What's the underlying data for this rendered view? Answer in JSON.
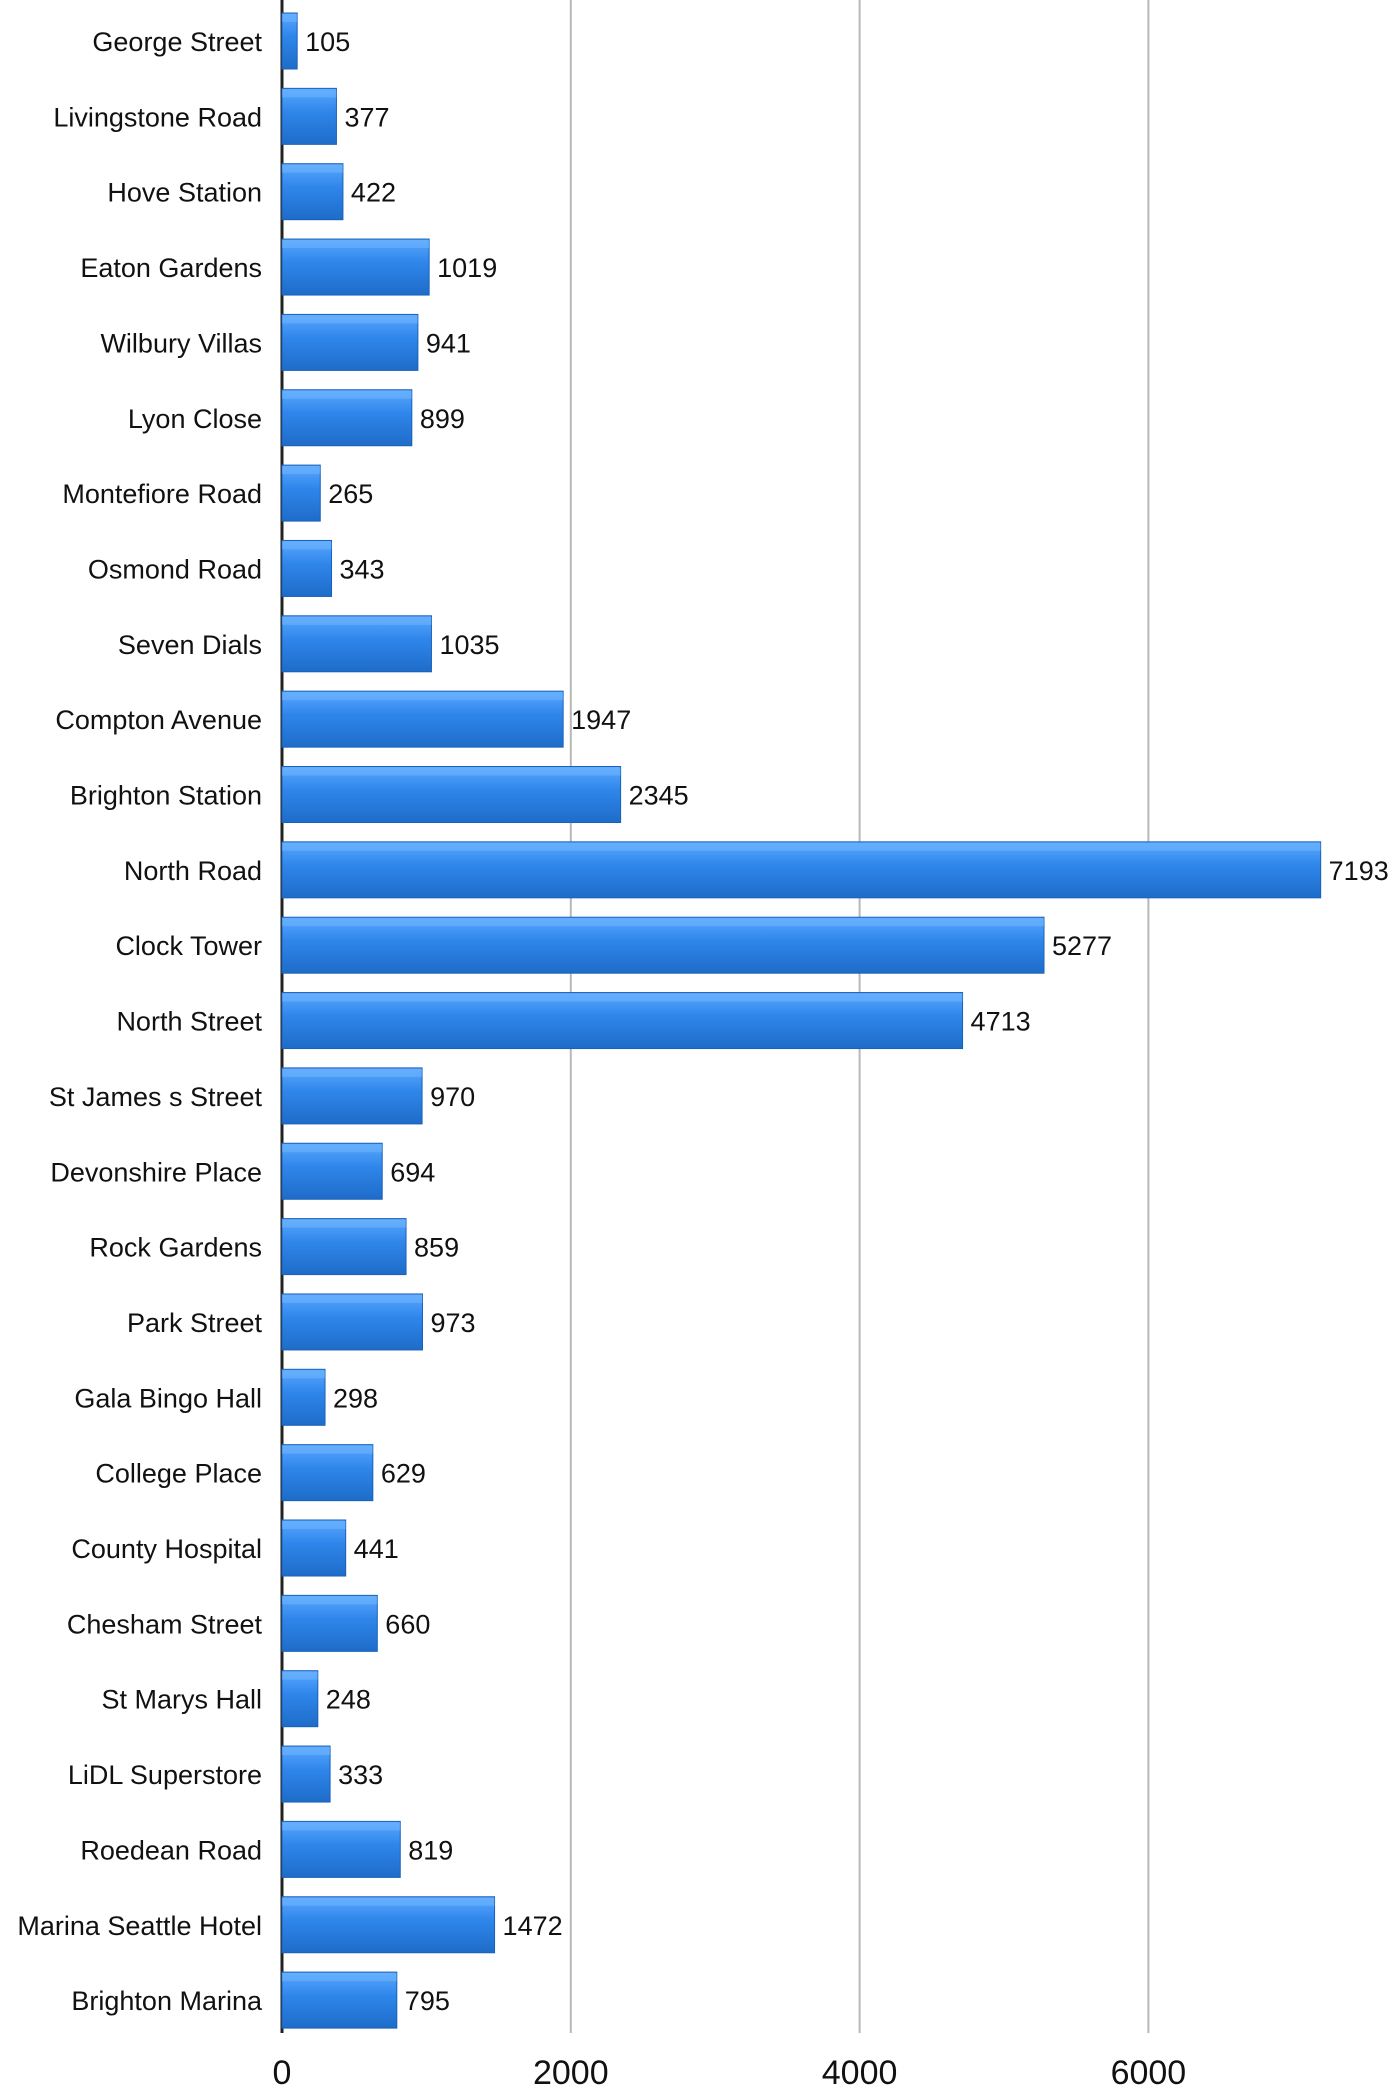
{
  "chart_data": {
    "type": "bar",
    "orientation": "horizontal",
    "title": "",
    "xlabel": "",
    "ylabel": "",
    "xlim": [
      0,
      7200
    ],
    "x_ticks": [
      0,
      2000,
      4000,
      6000
    ],
    "grid": true,
    "legend": "none",
    "colors": {
      "bar_top": "#5aa8ff",
      "bar_main": "#2f86ea",
      "bar_bottom": "#1e6cc9",
      "grid": "#b8b8b8",
      "axis": "#222222",
      "text": "#111111"
    },
    "categories": [
      "George Street",
      "Livingstone Road",
      "Hove Station",
      "Eaton Gardens",
      "Wilbury Villas",
      "Lyon Close",
      "Montefiore Road",
      "Osmond Road",
      "Seven Dials",
      "Compton Avenue",
      "Brighton Station",
      "North Road",
      "Clock Tower",
      "North Street",
      "St James s Street",
      "Devonshire Place",
      "Rock Gardens",
      "Park Street",
      "Gala Bingo Hall",
      "College Place",
      "County Hospital",
      "Chesham Street",
      "St Marys Hall",
      "LiDL Superstore",
      "Roedean Road",
      "Marina Seattle Hotel",
      "Brighton Marina"
    ],
    "values": [
      105,
      377,
      422,
      1019,
      941,
      899,
      265,
      343,
      1035,
      1947,
      2345,
      7193,
      5277,
      4713,
      970,
      694,
      859,
      973,
      298,
      629,
      441,
      660,
      248,
      333,
      819,
      1472,
      795
    ]
  }
}
